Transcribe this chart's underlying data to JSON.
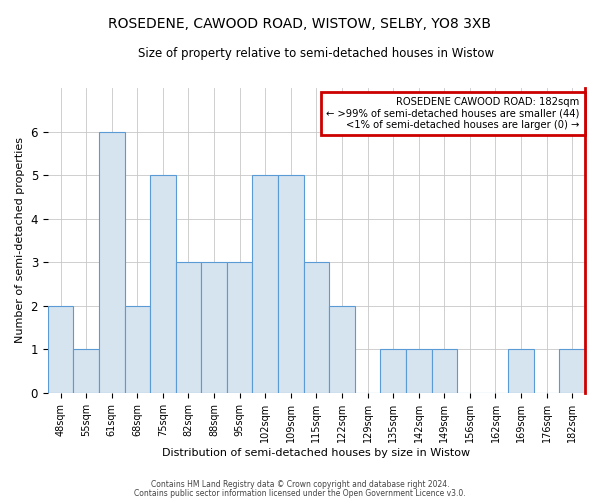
{
  "title": "ROSEDENE, CAWOOD ROAD, WISTOW, SELBY, YO8 3XB",
  "subtitle": "Size of property relative to semi-detached houses in Wistow",
  "xlabel": "Distribution of semi-detached houses by size in Wistow",
  "ylabel": "Number of semi-detached properties",
  "categories": [
    "48sqm",
    "55sqm",
    "61sqm",
    "68sqm",
    "75sqm",
    "82sqm",
    "88sqm",
    "95sqm",
    "102sqm",
    "109sqm",
    "115sqm",
    "122sqm",
    "129sqm",
    "135sqm",
    "142sqm",
    "149sqm",
    "156sqm",
    "162sqm",
    "169sqm",
    "176sqm",
    "182sqm"
  ],
  "values": [
    2,
    1,
    6,
    2,
    5,
    3,
    3,
    3,
    5,
    5,
    3,
    2,
    0,
    1,
    1,
    1,
    0,
    0,
    1,
    0,
    1
  ],
  "bar_color": "#d6e4f0",
  "bar_edge_color": "#5b9bd5",
  "highlight_index": 20,
  "highlight_color": "#cc0000",
  "ylim": [
    0,
    7
  ],
  "yticks": [
    0,
    1,
    2,
    3,
    4,
    5,
    6
  ],
  "annotation_title": "ROSEDENE CAWOOD ROAD: 182sqm",
  "annotation_line1": "← >99% of semi-detached houses are smaller (44)",
  "annotation_line2": "<1% of semi-detached houses are larger (0) →",
  "annotation_box_color": "#ffffff",
  "annotation_box_edge": "#cc0000",
  "footer1": "Contains HM Land Registry data © Crown copyright and database right 2024.",
  "footer2": "Contains public sector information licensed under the Open Government Licence v3.0.",
  "background_color": "#ffffff",
  "grid_color": "#c8c8c8"
}
